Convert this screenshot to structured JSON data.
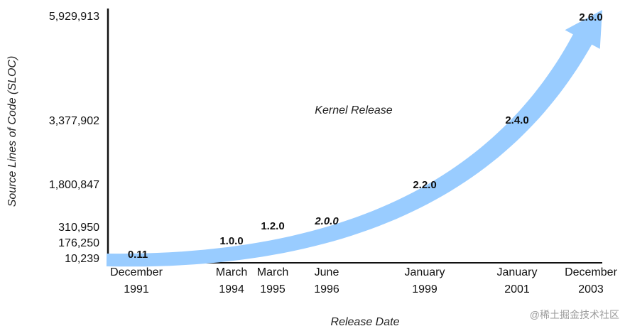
{
  "chart_data": {
    "type": "line",
    "xlabel": "Release Date",
    "ylabel": "Source Lines of Code (SLOC)",
    "annotation": "Kernel Release",
    "color": "#99ccff",
    "x_ticks": [
      {
        "top": "December",
        "bottom": "1991"
      },
      {
        "top": "March",
        "bottom": "1994"
      },
      {
        "top": "March",
        "bottom": "1995"
      },
      {
        "top": "June",
        "bottom": "1996"
      },
      {
        "top": "January",
        "bottom": "1999"
      },
      {
        "top": "January",
        "bottom": "2001"
      },
      {
        "top": "December",
        "bottom": "2003"
      }
    ],
    "y_ticks": [
      "5,929,913",
      "3,377,902",
      "1,800,847",
      "310,950",
      "176,250",
      "10,239"
    ],
    "series": [
      {
        "points": [
          {
            "date": "December 1991",
            "label": "0.11",
            "value": 10239
          },
          {
            "date": "March 1994",
            "label": "1.0.0",
            "value": 176250
          },
          {
            "date": "March 1995",
            "label": "1.2.0",
            "value": 310950
          },
          {
            "date": "June 1996",
            "label": "2.0.0",
            "value": 777956
          },
          {
            "date": "January 1999",
            "label": "2.2.0",
            "value": 1800847
          },
          {
            "date": "January 2001",
            "label": "2.4.0",
            "value": 3377902
          },
          {
            "date": "December 2003",
            "label": "2.6.0",
            "value": 5929913
          }
        ]
      }
    ]
  },
  "watermark": "@稀土掘金技术社区"
}
